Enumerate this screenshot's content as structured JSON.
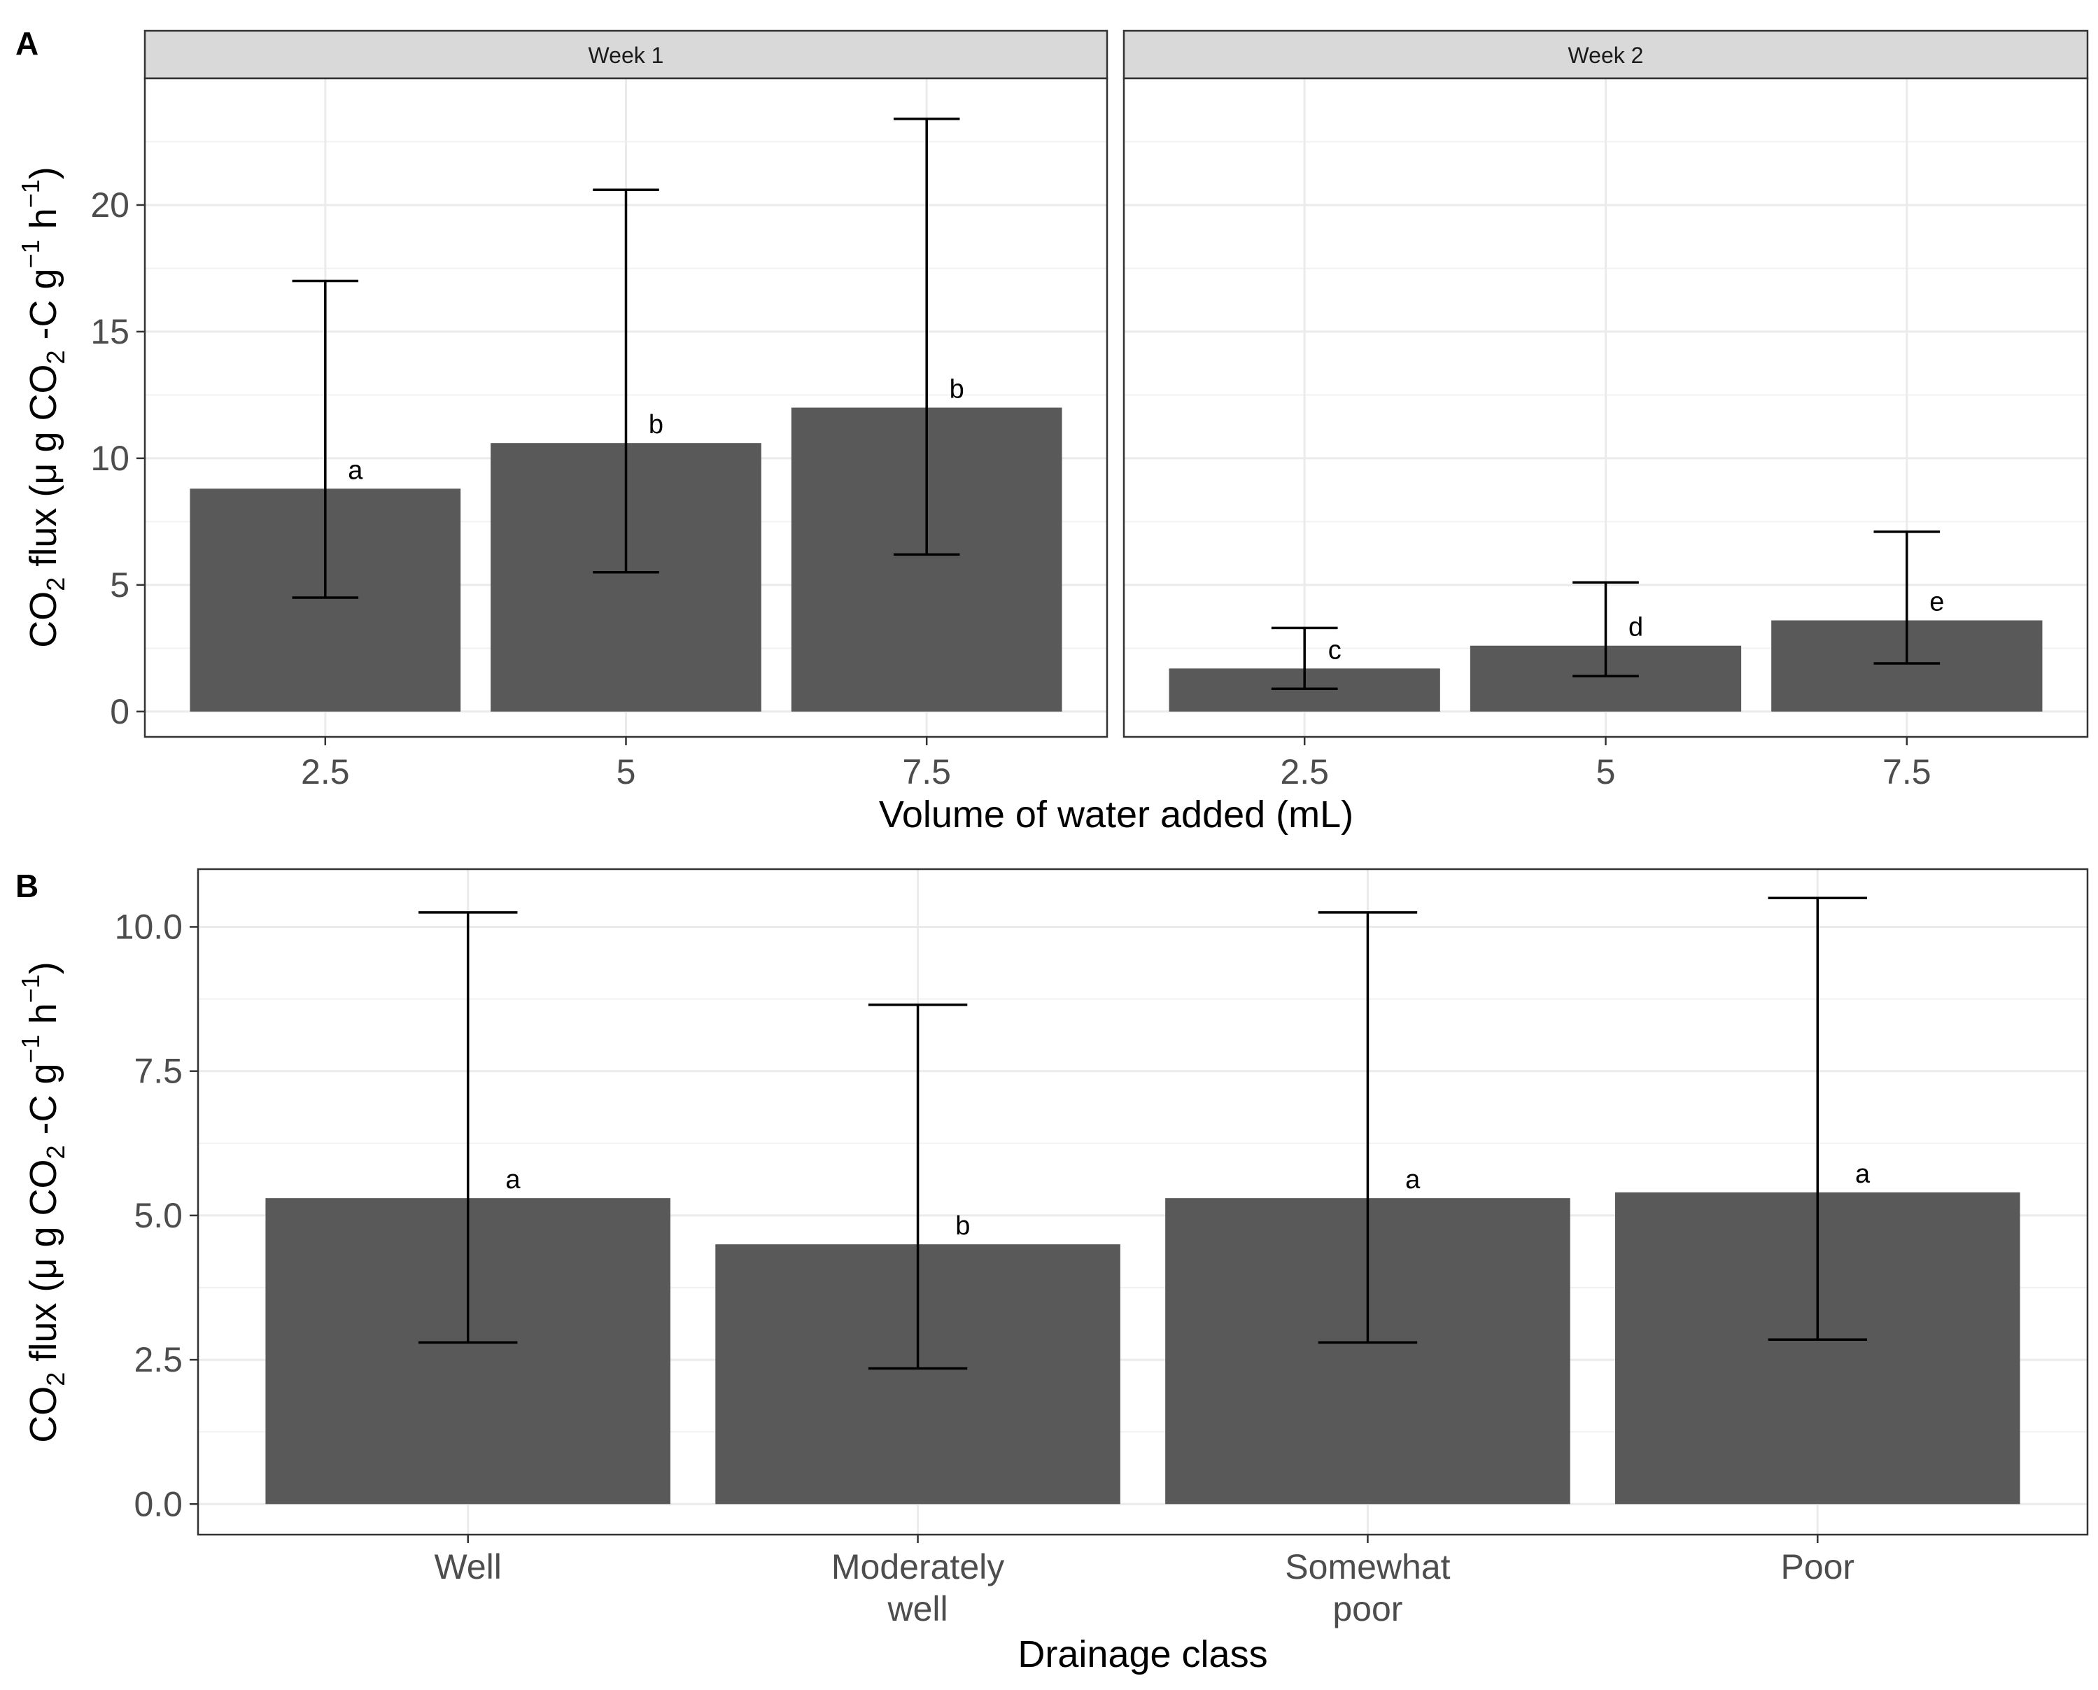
{
  "chart_data": [
    {
      "panel": "A",
      "type": "bar",
      "facets": [
        {
          "strip": "Week 1",
          "categories": [
            "2.5",
            "5",
            "7.5"
          ],
          "values": [
            8.8,
            10.6,
            12.0
          ],
          "error_low": [
            4.5,
            5.5,
            6.2
          ],
          "error_high": [
            17.0,
            20.6,
            23.4
          ],
          "letters": [
            "a",
            "b",
            "b"
          ]
        },
        {
          "strip": "Week 2",
          "categories": [
            "2.5",
            "5",
            "7.5"
          ],
          "values": [
            1.7,
            2.6,
            3.6
          ],
          "error_low": [
            0.9,
            1.4,
            1.9
          ],
          "error_high": [
            3.3,
            5.1,
            7.1
          ],
          "letters": [
            "c",
            "d",
            "e"
          ]
        }
      ],
      "ylim": [
        -1.0,
        25.0
      ],
      "yticks": [
        0,
        5,
        10,
        15,
        20
      ],
      "ytick_labels": [
        "0",
        "5",
        "10",
        "15",
        "20"
      ],
      "xlabel": "Volume of water added (mL)",
      "ylabel": {
        "pre": "CO",
        "sub1": "2",
        "mid": " flux (μ g CO",
        "sub2": "2",
        "mid2": " -C g",
        "sup1": "−1",
        "mid3": " h",
        "sup2": "−1",
        "post": ")"
      },
      "bar_color": "#595959"
    },
    {
      "panel": "B",
      "type": "bar",
      "categories": [
        [
          "Well"
        ],
        [
          "Moderately",
          "well"
        ],
        [
          "Somewhat",
          "poor"
        ],
        [
          "Poor"
        ]
      ],
      "values": [
        5.3,
        4.5,
        5.3,
        5.4
      ],
      "error_low": [
        2.8,
        2.35,
        2.8,
        2.85
      ],
      "error_high": [
        10.25,
        8.65,
        10.25,
        10.5
      ],
      "letters": [
        "a",
        "b",
        "a",
        "a"
      ],
      "ylim": [
        -0.53,
        11.0
      ],
      "yticks": [
        0,
        2.5,
        5,
        7.5,
        10
      ],
      "ytick_labels": [
        "0.0",
        "2.5",
        "5.0",
        "7.5",
        "10.0"
      ],
      "xlabel": "Drainage class",
      "ylabel": {
        "pre": "CO",
        "sub1": "2",
        "mid": " flux (μ g CO",
        "sub2": "2",
        "mid2": " -C g",
        "sup1": "−1",
        "mid3": " h",
        "sup2": "−1",
        "post": ")"
      },
      "bar_color": "#595959"
    }
  ]
}
